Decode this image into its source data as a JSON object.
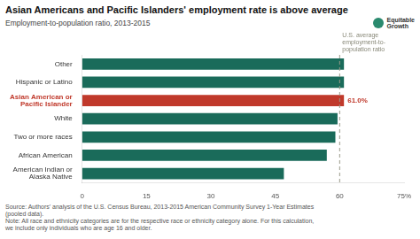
{
  "chart_data": {
    "type": "bar",
    "orientation": "horizontal",
    "title": "Asian Americans and Pacific Islanders' employment rate is above average",
    "subtitle": "Employment-to-population ratio, 2013-2015",
    "categories": [
      "Other",
      "Hispanic or Latino",
      "Asian American or\nPacific Islander",
      "White",
      "Two or more races",
      "African American",
      "American Indian or\nAlaska Native"
    ],
    "values": [
      61.0,
      61.0,
      61.0,
      59.5,
      59.0,
      57.0,
      47.0
    ],
    "colors": [
      "#1a6b5a",
      "#1a6b5a",
      "#c0392b",
      "#1a6b5a",
      "#1a6b5a",
      "#1a6b5a",
      "#1a6b5a"
    ],
    "value_labels": [
      null,
      null,
      "61.0%",
      null,
      null,
      null,
      null
    ],
    "xlim": [
      0,
      75
    ],
    "xticks": [
      0,
      15,
      30,
      45,
      60,
      {
        "value": 75,
        "label": "75%"
      }
    ],
    "grid": false,
    "annotations": [
      {
        "x": 60,
        "label": "U.S. average\nemployment-to-\npopulation ratio",
        "line_style": "dashed"
      }
    ],
    "source": [
      "Source: Authors' analysis of the U.S. Census Bureau, 2013-2015 American Community Survey 1-Year Estimates",
      "(pooled data).",
      "Note: All race and ethnicity categories are for the respective race or ethnicity category alone. For this calculation,",
      "we include only individuals who are age 16 and older."
    ],
    "logo": "Equitable\nGrowth"
  }
}
